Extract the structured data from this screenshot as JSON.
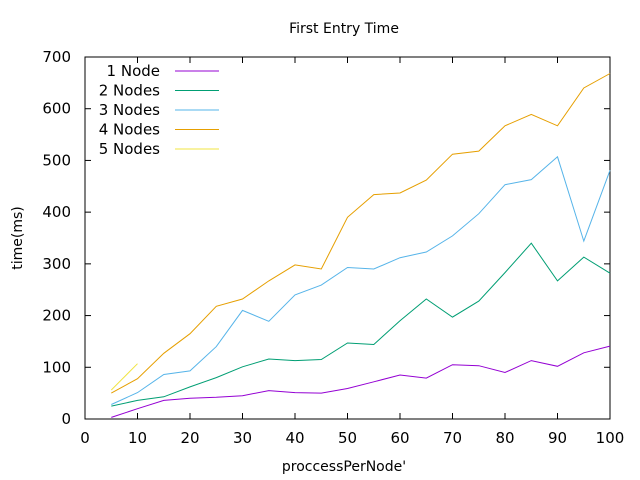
{
  "chart_data": {
    "type": "line",
    "title": "First Entry Time",
    "xlabel": "proccessPerNode'",
    "ylabel": "time(ms)",
    "xlim": [
      0,
      100
    ],
    "ylim": [
      0,
      700
    ],
    "xticks": [
      0,
      10,
      20,
      30,
      40,
      50,
      60,
      70,
      80,
      90,
      100
    ],
    "yticks": [
      0,
      100,
      200,
      300,
      400,
      500,
      600,
      700
    ],
    "grid": false,
    "legend_position": "top-left",
    "series": [
      {
        "name": "1 Node",
        "color": "#9400d3",
        "x": [
          5,
          10,
          15,
          20,
          25,
          30,
          35,
          40,
          45,
          50,
          55,
          60,
          65,
          70,
          75,
          80,
          85,
          90,
          95,
          100
        ],
        "y": [
          3,
          20,
          36,
          40,
          42,
          45,
          55,
          51,
          50,
          59,
          72,
          85,
          79,
          105,
          103,
          90,
          113,
          102,
          128,
          141
        ]
      },
      {
        "name": "2 Nodes",
        "color": "#009e73",
        "x": [
          5,
          10,
          15,
          20,
          25,
          30,
          35,
          40,
          45,
          50,
          55,
          60,
          65,
          70,
          75,
          80,
          85,
          90,
          95,
          100
        ],
        "y": [
          25,
          36,
          43,
          62,
          80,
          101,
          116,
          113,
          115,
          147,
          144,
          190,
          232,
          197,
          228,
          283,
          340,
          267,
          313,
          282
        ]
      },
      {
        "name": "3 Nodes",
        "color": "#56b4e9",
        "x": [
          5,
          10,
          15,
          20,
          25,
          30,
          35,
          40,
          45,
          50,
          55,
          60,
          65,
          70,
          75,
          80,
          85,
          90,
          95,
          100
        ],
        "y": [
          28,
          51,
          86,
          93,
          140,
          210,
          189,
          240,
          259,
          293,
          290,
          312,
          323,
          354,
          397,
          453,
          463,
          507,
          344,
          481
        ]
      },
      {
        "name": "4 Nodes",
        "color": "#e69f00",
        "x": [
          5,
          10,
          15,
          20,
          25,
          30,
          35,
          40,
          45,
          50,
          55,
          60,
          65,
          70,
          75,
          80,
          85,
          90,
          95,
          100
        ],
        "y": [
          50,
          78,
          127,
          165,
          218,
          232,
          267,
          298,
          290,
          390,
          434,
          437,
          462,
          512,
          518,
          567,
          589,
          567,
          640,
          668
        ]
      },
      {
        "name": "5 Nodes",
        "color": "#f0e442",
        "x": [
          5,
          10
        ],
        "y": [
          56,
          107
        ]
      }
    ]
  }
}
